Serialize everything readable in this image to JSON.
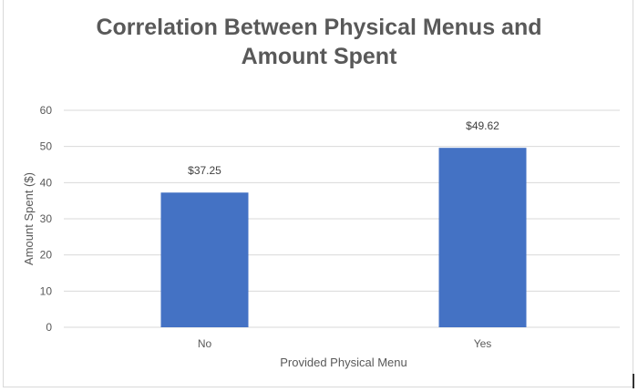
{
  "chart_data": {
    "type": "bar",
    "title_lines": [
      "Correlation Between Physical Menus and",
      "Amount Spent"
    ],
    "categories": [
      "No",
      "Yes"
    ],
    "values": [
      37.25,
      49.62
    ],
    "data_labels": [
      "$37.25",
      "$49.62"
    ],
    "xlabel": "Provided Physical Menu",
    "ylabel": "Amount Spent ($)",
    "ylim": [
      0,
      60
    ],
    "yticks": [
      "0",
      "10",
      "20",
      "30",
      "40",
      "50",
      "60"
    ],
    "grid": true,
    "bar_color": "#4472C4"
  }
}
